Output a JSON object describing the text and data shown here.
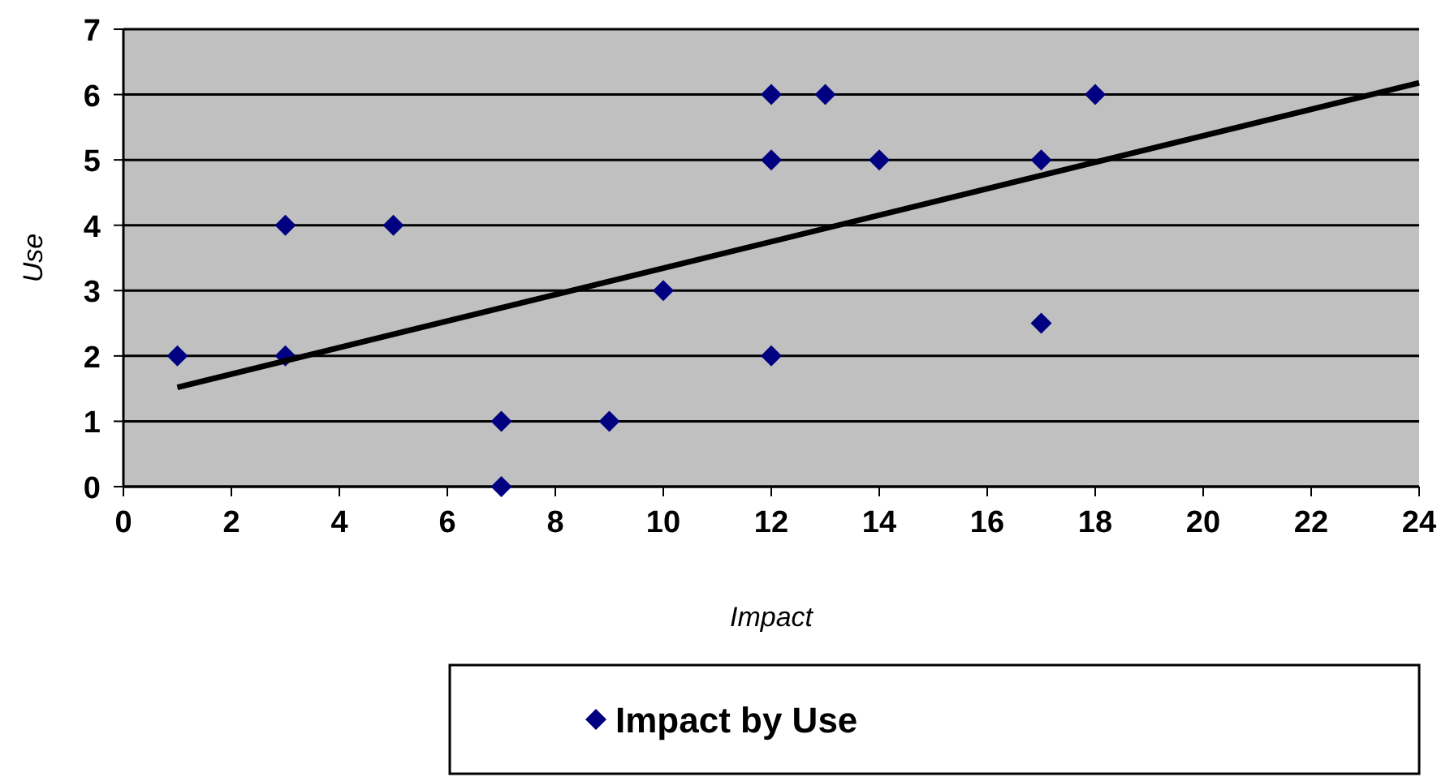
{
  "chart_data": {
    "type": "scatter",
    "xlabel": "Impact",
    "ylabel": "Use",
    "xlim": [
      0,
      24
    ],
    "ylim": [
      0,
      7
    ],
    "xticks": [
      0,
      2,
      4,
      6,
      8,
      10,
      12,
      14,
      16,
      18,
      20,
      22,
      24
    ],
    "yticks": [
      0,
      1,
      2,
      3,
      4,
      5,
      6,
      7
    ],
    "grid": "y",
    "legend": "bottom",
    "marker": "diamond",
    "series": [
      {
        "name": "Impact by Use",
        "color": "#000080",
        "x": [
          1,
          3,
          3,
          5,
          7,
          7,
          9,
          10,
          12,
          12,
          12,
          13,
          14,
          17,
          17,
          18
        ],
        "values": [
          2,
          4,
          2,
          4,
          1,
          0,
          1,
          3,
          6,
          5,
          2,
          6,
          5,
          5,
          2.5,
          6
        ]
      },
      {
        "type": "line",
        "color": "#000000",
        "marker": "none",
        "x": [
          1,
          24
        ],
        "values": [
          1.52,
          6.18
        ]
      }
    ]
  }
}
